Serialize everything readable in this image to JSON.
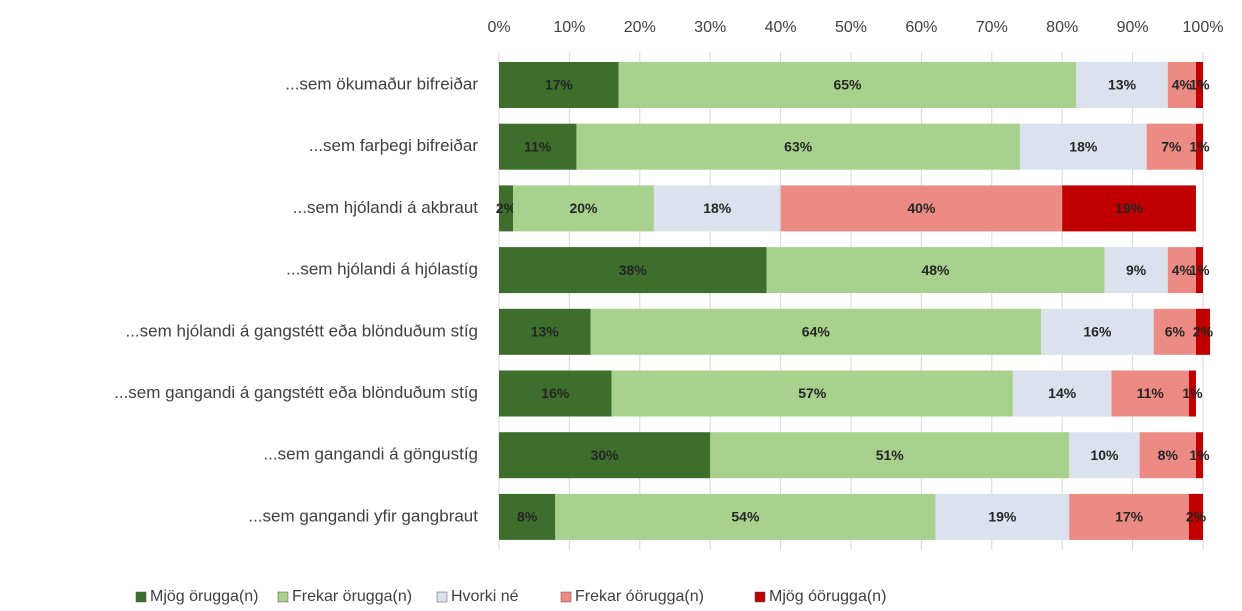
{
  "chart_data": {
    "type": "stacked_barh",
    "categories": [
      "...sem ökumaður bifreiðar",
      "...sem farþegi bifreiðar",
      "...sem hjólandi á akbraut",
      "...sem hjólandi á hjólastíg",
      "...sem hjólandi á gangstétt eða blönduðum stíg",
      "...sem gangandi á gangstétt eða blönduðum stíg",
      "...sem gangandi á göngustíg",
      "...sem gangandi yfir gangbraut"
    ],
    "series": [
      {
        "name": "Mjög örugga(n)",
        "color": "#3d6e2c",
        "values": [
          17,
          11,
          2,
          38,
          13,
          16,
          30,
          8
        ],
        "value_labels": [
          "17%",
          "11%",
          "2%",
          "38%",
          "13%",
          "16%",
          "30%",
          "8%"
        ]
      },
      {
        "name": "Frekar örugga(n)",
        "color": "#a9d18e",
        "values": [
          65,
          63,
          20,
          48,
          64,
          57,
          51,
          54
        ],
        "value_labels": [
          "65%",
          "63%",
          "20%",
          "48%",
          "64%",
          "57%",
          "51%",
          "54%"
        ]
      },
      {
        "name": "Hvorki né",
        "color": "#dbe2ee",
        "values": [
          13,
          18,
          18,
          9,
          16,
          14,
          10,
          19
        ],
        "value_labels": [
          "13%",
          "18%",
          "18%",
          "9%",
          "16%",
          "14%",
          "10%",
          "19%"
        ]
      },
      {
        "name": "Frekar óörugga(n)",
        "color": "#ec8b83",
        "values": [
          4,
          7,
          40,
          4,
          6,
          11,
          8,
          17
        ],
        "value_labels": [
          "4%",
          "7%",
          "40%",
          "4%",
          "6%",
          "11%",
          "8%",
          "17%"
        ]
      },
      {
        "name": "Mjög óörugga(n)",
        "color": "#c00000",
        "values": [
          1,
          1,
          19,
          1,
          2,
          1,
          1,
          2
        ],
        "value_labels": [
          "1%",
          "1%",
          "19%",
          "1%",
          "2%",
          "1%",
          "1%",
          "2%"
        ]
      }
    ],
    "xlim": [
      0,
      100
    ],
    "xticks": [
      {
        "value": 0,
        "label": "0%"
      },
      {
        "value": 10,
        "label": "10%"
      },
      {
        "value": 20,
        "label": "20%"
      },
      {
        "value": 30,
        "label": "30%"
      },
      {
        "value": 40,
        "label": "40%"
      },
      {
        "value": 50,
        "label": "50%"
      },
      {
        "value": 60,
        "label": "60%"
      },
      {
        "value": 70,
        "label": "70%"
      },
      {
        "value": 80,
        "label": "80%"
      },
      {
        "value": 90,
        "label": "90%"
      },
      {
        "value": 100,
        "label": "100%"
      }
    ],
    "grid": true,
    "legend": "bottom"
  }
}
